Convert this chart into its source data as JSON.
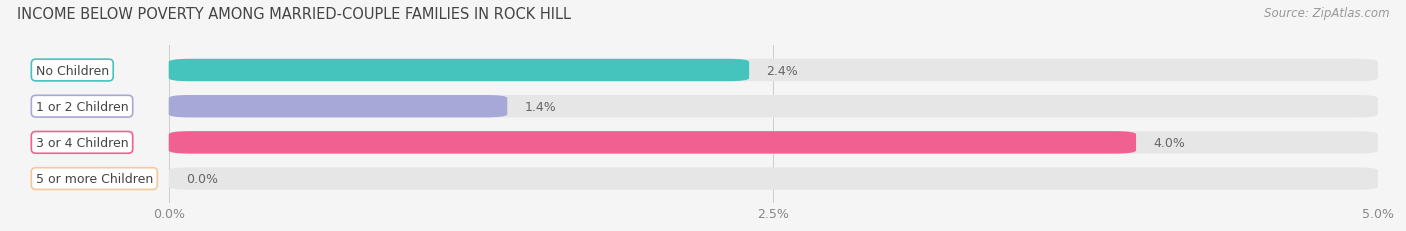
{
  "title": "INCOME BELOW POVERTY AMONG MARRIED-COUPLE FAMILIES IN ROCK HILL",
  "source": "Source: ZipAtlas.com",
  "categories": [
    "No Children",
    "1 or 2 Children",
    "3 or 4 Children",
    "5 or more Children"
  ],
  "values": [
    2.4,
    1.4,
    4.0,
    0.0
  ],
  "bar_colors": [
    "#45c4be",
    "#a8a8d8",
    "#f06090",
    "#f5c89a"
  ],
  "xlim": [
    0,
    5.0
  ],
  "xticks": [
    0.0,
    2.5,
    5.0
  ],
  "xticklabels": [
    "0.0%",
    "2.5%",
    "5.0%"
  ],
  "background_color": "#f5f5f5",
  "bar_bg_color": "#e6e6e6",
  "title_fontsize": 10.5,
  "source_fontsize": 8.5,
  "label_fontsize": 9,
  "value_fontsize": 9,
  "tick_fontsize": 9
}
